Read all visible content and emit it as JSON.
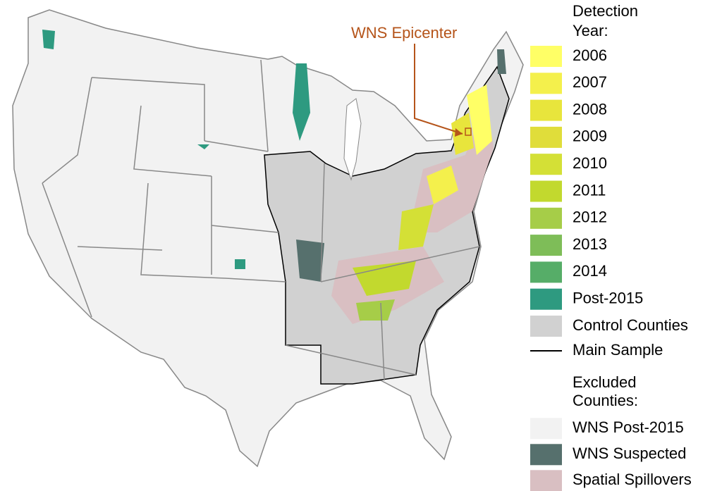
{
  "annotation": "WNS Epicenter",
  "legend": {
    "title": [
      "Detection",
      "Year:"
    ],
    "items": [
      {
        "name": "2006",
        "color": "#ffff66",
        "symbol": "fill"
      },
      {
        "name": "2007",
        "color": "#f4f04c",
        "symbol": "fill"
      },
      {
        "name": "2008",
        "color": "#e8e53c",
        "symbol": "fill"
      },
      {
        "name": "2009",
        "color": "#e0dd3a",
        "symbol": "fill"
      },
      {
        "name": "2010",
        "color": "#d4e036",
        "symbol": "fill"
      },
      {
        "name": "2011",
        "color": "#c2d92e",
        "symbol": "fill"
      },
      {
        "name": "2012",
        "color": "#a6cd48",
        "symbol": "fill"
      },
      {
        "name": "2013",
        "color": "#7ebd58",
        "symbol": "fill"
      },
      {
        "name": "2014",
        "color": "#56ad68",
        "symbol": "fill"
      },
      {
        "name": "Post-2015",
        "color": "#2e9a80",
        "symbol": "fill"
      },
      {
        "name": "Control Counties",
        "color": "#d1d1d1",
        "symbol": "fill"
      },
      {
        "name": "Main Sample",
        "color": "#000000",
        "symbol": "line"
      }
    ],
    "excluded_title": [
      "Excluded",
      "Counties:"
    ],
    "excluded_items": [
      {
        "name": "WNS Post-2015",
        "color": "#f2f2f2",
        "symbol": "fill"
      },
      {
        "name": "WNS Suspected",
        "color": "#56706d",
        "symbol": "fill"
      },
      {
        "name": "Spatial Spillovers",
        "color": "#d9bfc2",
        "symbol": "fill"
      }
    ]
  }
}
